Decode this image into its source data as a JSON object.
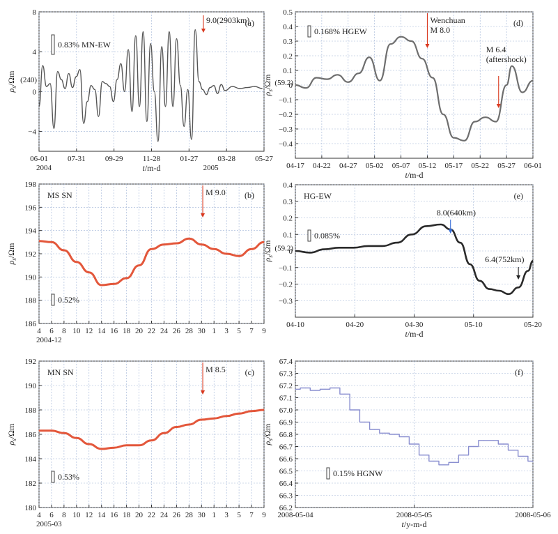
{
  "chart_data": [
    {
      "id": "a",
      "type": "line",
      "panel_label": "(a)",
      "inset_label": "0.83% MN-EW",
      "ylabel_pre": "ρ",
      "ylabel_sub": "s",
      "ylabel_post": "/Ωm",
      "xlabel_pre": "t",
      "xlabel_post": "/m-d",
      "x_ticks": [
        "06-01",
        "07-31",
        "09-29",
        "11-28",
        "01-27",
        "03-28",
        "05-27"
      ],
      "x_year_labels": [
        {
          "label": "2004",
          "x": 0
        },
        {
          "label": "2005",
          "x": 4.62
        }
      ],
      "y_ticks": [
        -4,
        0,
        4,
        8
      ],
      "y_ticks_labeled": [
        "−4",
        "0",
        "4",
        "8"
      ],
      "ylim": [
        -6,
        8
      ],
      "xlim": [
        0,
        6.05
      ],
      "baseline_label": "(240)",
      "baseline_y": 1.2,
      "annotations": [
        {
          "text": "9.0(2903km)",
          "x": 4.42,
          "arrow_color": "#d9381e"
        }
      ],
      "series": [
        {
          "color": "#555555",
          "x": [
            0,
            0.1,
            0.2,
            0.3,
            0.4,
            0.5,
            0.6,
            0.7,
            0.8,
            0.9,
            1.0,
            1.1,
            1.2,
            1.3,
            1.4,
            1.5,
            1.6,
            1.7,
            1.8,
            1.9,
            2.0,
            2.1,
            2.2,
            2.3,
            2.4,
            2.5,
            2.6,
            2.7,
            2.8,
            2.9,
            3.0,
            3.1,
            3.2,
            3.3,
            3.4,
            3.5,
            3.6,
            3.7,
            3.8,
            3.9,
            4.0,
            4.1,
            4.2,
            4.3,
            4.4,
            4.5,
            4.6,
            4.7,
            4.8,
            4.9,
            5.0,
            5.2,
            5.4,
            5.6,
            5.8,
            6.0
          ],
          "y": [
            -1.5,
            2.6,
            0.5,
            0.8,
            -3.7,
            2.0,
            1.2,
            0.3,
            1.8,
            0.4,
            1.5,
            2.2,
            -3.2,
            -1.0,
            0.6,
            0.2,
            -2.5,
            1.0,
            0.8,
            0.5,
            -1.0,
            1.2,
            2.8,
            0.0,
            4.2,
            -2.0,
            5.6,
            -1.5,
            6.0,
            -3.0,
            4.8,
            0.0,
            -5.0,
            4.5,
            -1.5,
            6.0,
            -1.5,
            5.3,
            0.6,
            -3.5,
            0.2,
            -4.8,
            6.2,
            1.0,
            0.2,
            -0.3,
            0.4,
            0.6,
            -0.2,
            0.7,
            0.1,
            0.5,
            0.3,
            0.4,
            0.5,
            0.3
          ]
        }
      ]
    },
    {
      "id": "b",
      "type": "line",
      "panel_label": "(b)",
      "inset_label": "MS SN",
      "scale_label": "0.52%",
      "ylabel_pre": "ρ",
      "ylabel_sub": "s",
      "ylabel_post": "/Ωm",
      "xlabel_pre": "",
      "xlabel_post": "",
      "x_ticks": [
        "4",
        "6",
        "8",
        "10",
        "12",
        "14",
        "16",
        "18",
        "20",
        "22",
        "24",
        "26",
        "28",
        "30",
        "1",
        "3",
        "5",
        "7",
        "9"
      ],
      "x_year_labels": [
        {
          "label": "2004-12",
          "x": 0
        }
      ],
      "y_ticks": [
        186,
        188,
        190,
        192,
        194,
        196,
        198
      ],
      "y_ticks_labeled": [
        "186",
        "188",
        "190",
        "192",
        "194",
        "196",
        "198"
      ],
      "ylim": [
        186,
        198
      ],
      "xlim": [
        0,
        18
      ],
      "annotations": [
        {
          "text": "M 9.0",
          "x": 13.1,
          "arrow_color": "#d9381e"
        }
      ],
      "series": [
        {
          "color": "#e3573b",
          "x": [
            0,
            1,
            2,
            3,
            4,
            5,
            6,
            7,
            8,
            9,
            10,
            11,
            12,
            13,
            14,
            15,
            16,
            17,
            18
          ],
          "y": [
            193.1,
            193.0,
            192.3,
            191.3,
            190.4,
            189.3,
            189.4,
            189.9,
            191.0,
            192.4,
            192.8,
            192.9,
            193.3,
            192.8,
            192.4,
            192.0,
            191.8,
            192.4,
            193.0
          ]
        }
      ]
    },
    {
      "id": "c",
      "type": "line",
      "panel_label": "(c)",
      "inset_label": "MN SN",
      "scale_label": "0.53%",
      "ylabel_pre": "ρ",
      "ylabel_sub": "s",
      "ylabel_post": "/Ωm",
      "xlabel_pre": "",
      "xlabel_post": "",
      "x_ticks": [
        "4",
        "6",
        "8",
        "10",
        "12",
        "14",
        "16",
        "18",
        "20",
        "22",
        "24",
        "26",
        "28",
        "30",
        "1",
        "3",
        "5",
        "7",
        "9"
      ],
      "x_year_labels": [
        {
          "label": "2005-03",
          "x": 0
        }
      ],
      "y_ticks": [
        180,
        182,
        184,
        186,
        188,
        190,
        192
      ],
      "y_ticks_labeled": [
        "180",
        "182",
        "184",
        "186",
        "188",
        "190",
        "192"
      ],
      "ylim": [
        180,
        192
      ],
      "xlim": [
        0,
        18
      ],
      "annotations": [
        {
          "text": "M 8.5",
          "x": 13.1,
          "arrow_color": "#d9381e"
        }
      ],
      "series": [
        {
          "color": "#e3573b",
          "x": [
            0,
            1,
            2,
            3,
            4,
            5,
            6,
            7,
            8,
            9,
            10,
            11,
            12,
            13,
            14,
            15,
            16,
            17,
            18
          ],
          "y": [
            186.3,
            186.3,
            186.1,
            185.7,
            185.2,
            184.8,
            184.9,
            185.1,
            185.1,
            185.5,
            186.1,
            186.6,
            186.8,
            187.2,
            187.3,
            187.5,
            187.7,
            187.9,
            188.0
          ]
        }
      ]
    },
    {
      "id": "d",
      "type": "line",
      "panel_label": "(d)",
      "inset_label": "0.168% HGEW",
      "ylabel_pre": "ρ",
      "ylabel_sub": "s",
      "ylabel_post": "/Ωm",
      "xlabel_pre": "t",
      "xlabel_post": "/m-d",
      "x_ticks": [
        "04-17",
        "04-22",
        "04-27",
        "05-02",
        "05-07",
        "05-12",
        "05-17",
        "05-22",
        "05-27",
        "06-01"
      ],
      "x_year_labels": [],
      "y_ticks": [
        -0.4,
        -0.3,
        -0.2,
        -0.1,
        0,
        0.1,
        0.2,
        0.3,
        0.4,
        0.5
      ],
      "y_ticks_labeled": [
        "−0.4",
        "−0.3",
        "−0.2",
        "−0.1",
        "0",
        "0.1",
        "0.2",
        "0.3",
        "0.4",
        "0.5"
      ],
      "ylim": [
        -0.5,
        0.5
      ],
      "xlim": [
        0,
        45
      ],
      "baseline_label": "(59.2)",
      "baseline_y": 0.02,
      "annotations": [
        {
          "text": "Wenchuan",
          "text2": "M 8.0",
          "x": 25.0,
          "arrow_color": "#d9381e"
        },
        {
          "text": "M 6.4",
          "text2": "(aftershock)",
          "x": 38.5,
          "arrow_color": "#d9381e"
        }
      ],
      "series": [
        {
          "color": "#6e6e6e",
          "x": [
            0,
            2,
            4,
            6,
            8,
            10,
            12,
            14,
            16,
            18,
            20,
            22,
            24,
            26,
            28,
            30,
            32,
            34,
            36,
            38,
            40,
            41,
            43,
            45
          ],
          "y": [
            0.0,
            -0.02,
            0.05,
            0.04,
            0.07,
            0.02,
            0.08,
            0.19,
            0.03,
            0.28,
            0.33,
            0.3,
            0.18,
            0.05,
            -0.2,
            -0.36,
            -0.38,
            -0.25,
            -0.22,
            -0.25,
            0.0,
            0.13,
            -0.05,
            0.03
          ]
        }
      ]
    },
    {
      "id": "e",
      "type": "line",
      "panel_label": "(e)",
      "inset_label": "HG-EW",
      "scale_label": "0.085%",
      "ylabel_pre": "ρ",
      "ylabel_sub": "s",
      "ylabel_post": "/Ωm",
      "xlabel_pre": "t",
      "xlabel_post": "/m-d",
      "x_ticks": [
        "04-10",
        "04-20",
        "04-30",
        "05-10",
        "05-20"
      ],
      "x_year_labels": [],
      "y_ticks": [
        -0.3,
        -0.2,
        -0.1,
        0,
        0.1,
        0.2,
        0.3,
        0.4
      ],
      "y_ticks_labeled": [
        "−0.3",
        "−0.2",
        "−0.1",
        "0",
        "0.1",
        "0.2",
        "0.3",
        "0.4"
      ],
      "ylim": [
        -0.4,
        0.4
      ],
      "xlim": [
        0,
        49
      ],
      "baseline_label": "(59.2)",
      "baseline_y": 0.02,
      "annotations": [
        {
          "text": "8.0(640km)",
          "x": 32.0,
          "arrow_color": "#3a6fd8"
        },
        {
          "text": "6.4(752km)",
          "x": 46.0,
          "arrow_color": "#222222"
        }
      ],
      "series": [
        {
          "color": "#2a2a2a",
          "x": [
            0,
            3,
            6,
            9,
            12,
            15,
            18,
            21,
            24,
            27,
            30,
            32,
            34,
            36,
            38,
            40,
            42,
            44,
            46,
            48,
            49
          ],
          "y": [
            0.0,
            -0.01,
            0.01,
            0.02,
            0.02,
            0.03,
            0.03,
            0.05,
            0.1,
            0.15,
            0.16,
            0.13,
            0.05,
            -0.08,
            -0.18,
            -0.23,
            -0.24,
            -0.26,
            -0.22,
            -0.12,
            -0.06
          ]
        }
      ]
    },
    {
      "id": "f",
      "type": "line",
      "panel_label": "(f)",
      "inset_label": "0.15% HGNW",
      "ylabel_pre": "ρ",
      "ylabel_sub": "s",
      "ylabel_post": "/Ωm",
      "xlabel_pre": "t",
      "xlabel_post": "/y-m-d",
      "x_ticks": [
        "2008-05-04",
        "2008-05-05",
        "2008-05-06"
      ],
      "x_year_labels": [],
      "y_ticks": [
        66.2,
        66.3,
        66.4,
        66.5,
        66.6,
        66.7,
        66.8,
        66.9,
        67.0,
        67.1,
        67.2,
        67.3,
        67.4
      ],
      "y_ticks_labeled": [
        "66.2",
        "66.3",
        "66.4",
        "66.5",
        "66.6",
        "66.7",
        "66.8",
        "66.9",
        "67.0",
        "67.1",
        "67.2",
        "67.3",
        "67.4"
      ],
      "ylim": [
        66.2,
        67.4
      ],
      "xlim": [
        0,
        48
      ],
      "annotations": [],
      "series": [
        {
          "color": "#8a8fd0",
          "step": true,
          "x": [
            0,
            2,
            4,
            6,
            8,
            10,
            12,
            14,
            16,
            18,
            20,
            22,
            24,
            26,
            28,
            30,
            32,
            34,
            36,
            38,
            40,
            42,
            44,
            46,
            48
          ],
          "y": [
            67.17,
            67.18,
            67.16,
            67.17,
            67.18,
            67.13,
            67.0,
            66.9,
            66.84,
            66.81,
            66.8,
            66.78,
            66.72,
            66.63,
            66.58,
            66.55,
            66.57,
            66.63,
            66.7,
            66.75,
            66.75,
            66.72,
            66.67,
            66.62,
            66.58
          ]
        }
      ]
    }
  ]
}
